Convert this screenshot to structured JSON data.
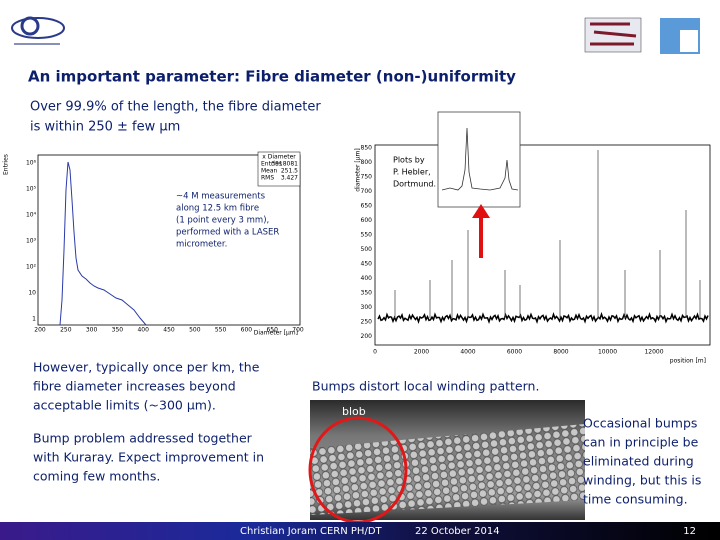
{
  "header": {
    "title": "An important parameter: Fibre diameter (non-)uniformity"
  },
  "intro": [
    "Over 99.9% of the length, the fibre diameter",
    "is within 250 ± few μm"
  ],
  "histogram": {
    "y_label": "Entries",
    "x_label": "Diameter [μm]",
    "x_ticks": [
      "200",
      "250",
      "300",
      "350",
      "400",
      "450",
      "500",
      "550",
      "600",
      "650",
      "700"
    ],
    "y_ticks": [
      "10⁶",
      "10⁵",
      "10⁴",
      "10³",
      "10²",
      "10",
      "1"
    ],
    "stats": {
      "name": "x Diameter",
      "rows": [
        [
          "Entries",
          "3918081"
        ],
        [
          "Mean",
          "251.5"
        ],
        [
          "RMS",
          "3.427"
        ]
      ]
    }
  },
  "annotation": [
    "~4 M measurements",
    "along 12.5 km fibre",
    "(1 point every 3 mm),",
    "performed with a LASER",
    "micrometer."
  ],
  "scan_plot": {
    "y_label": "diameter [μm]",
    "x_label": "position [m]",
    "y_ticks": [
      "850",
      "800",
      "750",
      "700",
      "650",
      "600",
      "550",
      "500",
      "450",
      "400",
      "350",
      "300",
      "250",
      "200"
    ],
    "x_ticks": [
      "0",
      "2000",
      "4000",
      "6000",
      "8000",
      "10000",
      "12000"
    ]
  },
  "credit": [
    "Plots by",
    "P. Hebler,",
    "Dortmund."
  ],
  "left_text": {
    "para1": [
      "However, typically once per km, the",
      "fibre diameter increases beyond",
      "acceptable limits (~300 μm)."
    ],
    "para2": [
      "Bump problem addressed together",
      "with Kuraray. Expect improvement in",
      "coming few months."
    ]
  },
  "photo": {
    "caption": "Bumps distort local winding pattern.",
    "label": "blob"
  },
  "side_note": [
    "Occasional bumps",
    "can in principle be",
    "eliminated during",
    "winding, but this is",
    "time consuming."
  ],
  "footer": {
    "author": "Christian Joram CERN PH/DT",
    "date": "22 October 2014",
    "page": "12"
  }
}
